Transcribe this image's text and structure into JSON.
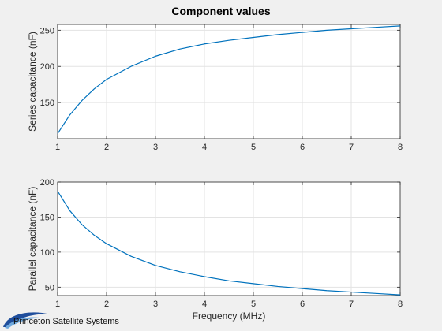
{
  "figure": {
    "title": "Component values",
    "logo_text": "Princeton Satellite Systems"
  },
  "chart_data": [
    {
      "type": "line",
      "title": "Component values",
      "xlabel": "",
      "ylabel": "Series capacitance (nF)",
      "xlim": [
        1,
        8
      ],
      "ylim": [
        100,
        258
      ],
      "xticks": [
        1,
        2,
        3,
        4,
        5,
        6,
        7,
        8
      ],
      "yticks": [
        150,
        200,
        250
      ],
      "grid": true,
      "line_color": "#0072bd",
      "series": [
        {
          "x": [
            1,
            1.25,
            1.5,
            1.75,
            2,
            2.5,
            3,
            3.5,
            4,
            4.5,
            5,
            5.5,
            6,
            6.5,
            7,
            7.5,
            8
          ],
          "values": [
            107,
            133,
            153,
            169,
            182,
            200,
            214,
            224,
            231,
            236,
            240,
            244,
            247,
            250,
            252,
            254,
            256
          ]
        }
      ]
    },
    {
      "type": "line",
      "title": "",
      "xlabel": "Frequency (MHz)",
      "ylabel": "Parallel capacitance (nF)",
      "xlim": [
        1,
        8
      ],
      "ylim": [
        38,
        200
      ],
      "xticks": [
        1,
        2,
        3,
        4,
        5,
        6,
        7,
        8
      ],
      "yticks": [
        50,
        100,
        150,
        200
      ],
      "grid": true,
      "line_color": "#0072bd",
      "series": [
        {
          "x": [
            1,
            1.25,
            1.5,
            1.75,
            2,
            2.5,
            3,
            3.5,
            4,
            4.5,
            5,
            5.5,
            6,
            6.5,
            7,
            7.5,
            8
          ],
          "values": [
            187,
            159,
            139,
            124,
            112,
            94,
            81,
            72,
            65,
            59,
            55,
            51,
            48,
            45,
            43,
            41,
            39
          ]
        }
      ]
    }
  ]
}
